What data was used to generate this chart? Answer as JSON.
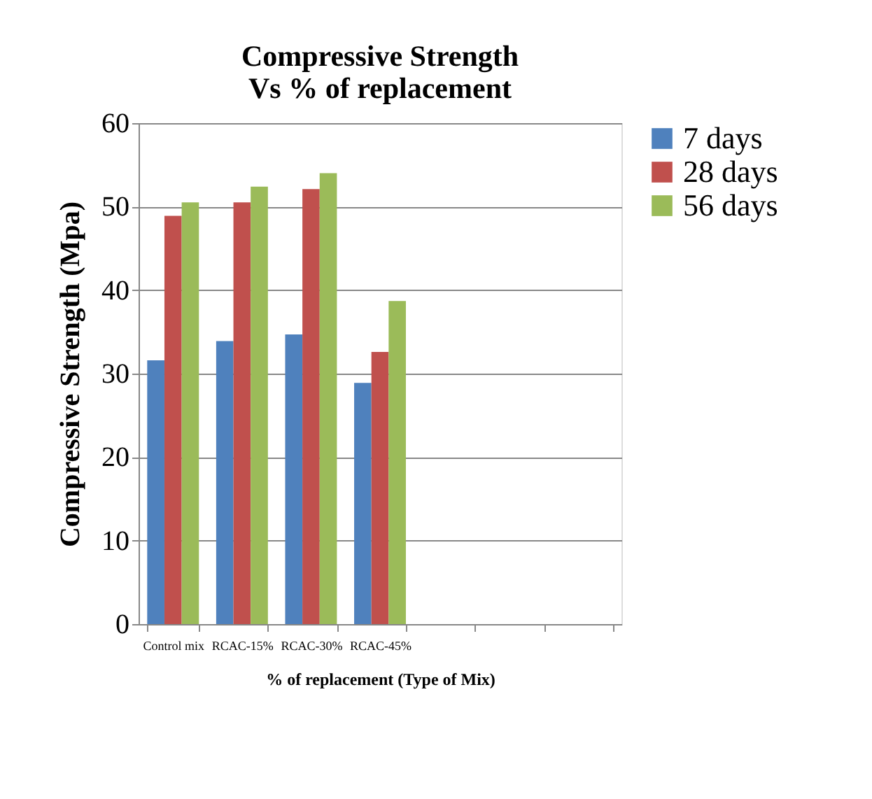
{
  "chart_data": {
    "type": "bar",
    "title": "Compressive Strength Vs % of replacement",
    "xlabel": "% of replacement (Type of Mix)",
    "ylabel": "Compressive Strength (Mpa)",
    "categories": [
      "Control mix",
      "RCAC-15%",
      "RCAC-30%",
      "RCAC-45%",
      null,
      null,
      null
    ],
    "series": [
      {
        "name": "7 days",
        "color": "#4f81bd",
        "values": [
          31.6,
          33.9,
          34.7,
          28.9,
          null,
          null,
          null
        ]
      },
      {
        "name": "28 days",
        "color": "#c0504d",
        "values": [
          48.9,
          50.5,
          52.1,
          32.6,
          null,
          null,
          null
        ]
      },
      {
        "name": "56 days",
        "color": "#9bbb59",
        "values": [
          50.5,
          52.4,
          54.0,
          38.7,
          null,
          null,
          null
        ]
      }
    ],
    "ylim": [
      0,
      60
    ],
    "yticks": [
      0,
      10,
      20,
      30,
      40,
      50,
      60
    ],
    "grid": "y",
    "legend": "right"
  }
}
